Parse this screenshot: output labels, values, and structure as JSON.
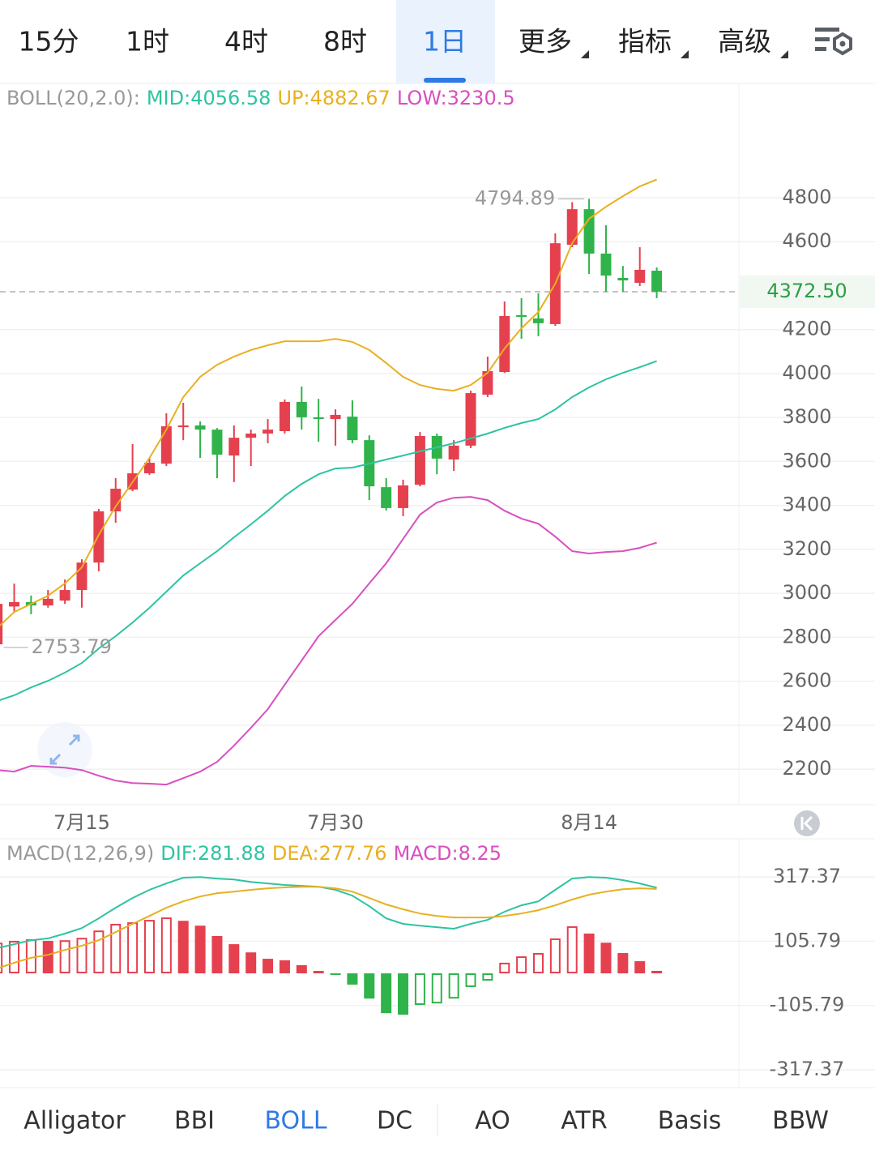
{
  "tabs": [
    {
      "label": "15分"
    },
    {
      "label": "1时"
    },
    {
      "label": "4时"
    },
    {
      "label": "8时"
    },
    {
      "label": "1日"
    },
    {
      "label": "更多",
      "dropdown": true
    },
    {
      "label": "指标",
      "dropdown": true
    },
    {
      "label": "高级",
      "dropdown": true
    }
  ],
  "selected_tab": 4,
  "indicator_tabs": [
    "Alligator",
    "BBI",
    "BOLL",
    "DC",
    "AO",
    "ATR",
    "Basis",
    "BBW"
  ],
  "selected_indicator": 2,
  "chart_data": [
    {
      "type": "candlestick",
      "indicator": "BOLL(20,2.0):",
      "categories": [
        null,
        null,
        null,
        null,
        null,
        "7月15",
        null,
        null,
        null,
        null,
        null,
        null,
        null,
        null,
        null,
        null,
        null,
        null,
        null,
        null,
        "7月30",
        null,
        null,
        null,
        null,
        null,
        null,
        null,
        null,
        null,
        null,
        null,
        null,
        null,
        null,
        "8月14",
        null,
        null,
        null,
        null
      ],
      "open": [
        2768,
        2940,
        2960,
        2945,
        2967,
        3015,
        3140,
        3373,
        3472,
        3546,
        3590,
        3756,
        3764,
        3745,
        3627,
        3708,
        3727,
        3738,
        3871,
        3801,
        3793,
        3804,
        3697,
        3483,
        3388,
        3494,
        3716,
        3609,
        3672,
        3904,
        4007,
        4266,
        4251,
        4225,
        4586,
        4748,
        4546,
        4435,
        4413,
        4468
      ],
      "high": [
        2960,
        3044,
        2990,
        3015,
        3063,
        3155,
        3384,
        3524,
        3679,
        3616,
        3819,
        3867,
        3782,
        3752,
        3764,
        3745,
        3793,
        3882,
        3941,
        3885,
        3837,
        3878,
        3719,
        3524,
        3517,
        3734,
        3727,
        3697,
        3922,
        4077,
        4328,
        4343,
        4365,
        4638,
        4780,
        4794.89,
        4675,
        4490,
        4575,
        4483
      ],
      "low": [
        2753.79,
        2915,
        2905,
        2935,
        2952,
        2935,
        3100,
        3321,
        3465,
        3539,
        3579,
        3697,
        3616,
        3524,
        3506,
        3579,
        3683,
        3727,
        3745,
        3690,
        3672,
        3683,
        3424,
        3377,
        3351,
        3487,
        3542,
        3557,
        3661,
        3893,
        4003,
        4158,
        4170,
        4217,
        4575,
        4453,
        4372,
        4372,
        4398,
        4343
      ],
      "close": [
        2952,
        2960,
        2945,
        2975,
        3015,
        3140,
        3373,
        3476,
        3546,
        3594,
        3760,
        3764,
        3745,
        3631,
        3708,
        3727,
        3745,
        3871,
        3801,
        3793,
        3812,
        3697,
        3487,
        3388,
        3491,
        3716,
        3613,
        3672,
        3911,
        4011,
        4262,
        4258,
        4229,
        4593,
        4748,
        4546,
        4446,
        4424,
        4472,
        4372.5
      ],
      "up_color": "#e5404e",
      "down_color": "#2fb34a",
      "series": [
        {
          "name": "MID:",
          "color": "#2ec3a2",
          "values": [
            2510,
            2536,
            2572,
            2602,
            2639,
            2683,
            2749,
            2805,
            2867,
            2934,
            3008,
            3081,
            3137,
            3192,
            3255,
            3314,
            3376,
            3443,
            3498,
            3542,
            3568,
            3572,
            3590,
            3609,
            3627,
            3646,
            3664,
            3683,
            3705,
            3727,
            3753,
            3775,
            3793,
            3837,
            3893,
            3937,
            3974,
            4003,
            4029,
            4056.58
          ]
        },
        {
          "name": "UP:",
          "color": "#e8b020",
          "values": [
            2842,
            2915,
            2952,
            2989,
            3045,
            3118,
            3266,
            3395,
            3506,
            3616,
            3745,
            3893,
            3985,
            4040,
            4077,
            4107,
            4129,
            4147,
            4147,
            4147,
            4158,
            4144,
            4107,
            4048,
            3985,
            3948,
            3930,
            3922,
            3948,
            4003,
            4114,
            4206,
            4280,
            4409,
            4593,
            4704,
            4759,
            4807,
            4852,
            4882.67
          ]
        },
        {
          "name": "LOW:",
          "color": "#d94fc0",
          "values": [
            2196,
            2189,
            2215,
            2211,
            2207,
            2196,
            2170,
            2148,
            2137,
            2134,
            2130,
            2159,
            2189,
            2233,
            2307,
            2388,
            2473,
            2584,
            2694,
            2805,
            2879,
            2952,
            3045,
            3137,
            3247,
            3358,
            3413,
            3435,
            3439,
            3424,
            3376,
            3340,
            3317,
            3258,
            3192,
            3181,
            3188,
            3192,
            3207,
            3230.5
          ]
        }
      ],
      "last_price": {
        "value": 4372.5,
        "label": "4372.50"
      },
      "ylim": [
        2038,
        5320
      ],
      "yticks": [
        2200,
        2400,
        2600,
        2800,
        3000,
        3200,
        3400,
        3600,
        3800,
        4000,
        4200,
        4600,
        4800
      ],
      "grid": true
    },
    {
      "type": "macd",
      "indicator": "MACD(12,26,9)",
      "series": [
        {
          "name": "DIF:",
          "color": "#2ec3a2",
          "values": [
            83,
            96,
            109,
            115,
            131,
            149,
            181,
            216,
            248,
            275,
            296,
            315,
            317,
            312,
            309,
            301,
            296,
            291,
            288,
            285,
            275,
            256,
            221,
            181,
            163,
            157,
            152,
            147,
            163,
            176,
            203,
            224,
            237,
            275,
            312,
            317,
            315,
            307,
            296,
            281.88
          ]
        },
        {
          "name": "DEA:",
          "color": "#e8b020",
          "values": [
            16,
            35,
            51,
            61,
            77,
            91,
            109,
            136,
            163,
            189,
            216,
            237,
            253,
            264,
            269,
            275,
            280,
            283,
            285,
            285,
            280,
            269,
            248,
            227,
            211,
            197,
            189,
            184,
            184,
            184,
            189,
            197,
            208,
            224,
            243,
            259,
            269,
            277,
            280,
            277.76
          ]
        },
        {
          "name": "MACD:",
          "color": "#d94fc0",
          "type": "histogram",
          "values": [
            101,
            107,
            112,
            107,
            109,
            117,
            141,
            163,
            168,
            176,
            184,
            173,
            157,
            123,
            96,
            69,
            48,
            43,
            27,
            8,
            -5,
            -37,
            -83,
            -131,
            -136,
            -104,
            -99,
            -83,
            -45,
            -24,
            35,
            56,
            67,
            115,
            155,
            131,
            101,
            67,
            40,
            8.25
          ]
        }
      ],
      "up_color": "#e5404e",
      "down_color": "#2fb34a",
      "ylim": [
        -376,
        443
      ],
      "yticks": [
        -317.37,
        -105.79,
        105.79,
        317.37
      ],
      "grid": true
    }
  ]
}
